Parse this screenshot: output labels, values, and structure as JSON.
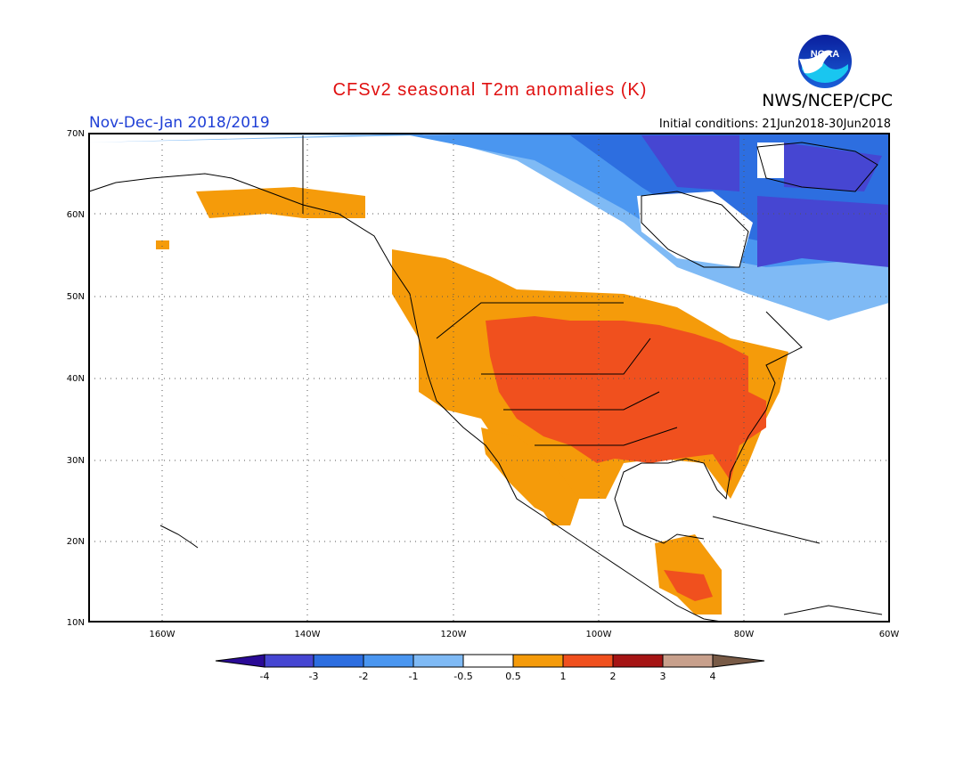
{
  "header": {
    "title": "CFSv2 seasonal T2m anomalies (K)",
    "agency": "NWS/NCEP/CPC",
    "logo_text": "NOAA",
    "period": "Nov-Dec-Jan 2018/2019",
    "initial_conditions": "Initial conditions: 21Jun2018-30Jun2018"
  },
  "map": {
    "lat_range": [
      10,
      70
    ],
    "lon_range": [
      -170,
      -60
    ],
    "lat_ticks": [
      {
        "value": 70,
        "label": "70N"
      },
      {
        "value": 60,
        "label": "60N"
      },
      {
        "value": 50,
        "label": "50N"
      },
      {
        "value": 40,
        "label": "40N"
      },
      {
        "value": 30,
        "label": "30N"
      },
      {
        "value": 20,
        "label": "20N"
      },
      {
        "value": 10,
        "label": "10N"
      }
    ],
    "lon_ticks": [
      {
        "value": -160,
        "label": "160W"
      },
      {
        "value": -140,
        "label": "140W"
      },
      {
        "value": -120,
        "label": "120W"
      },
      {
        "value": -100,
        "label": "100W"
      },
      {
        "value": -80,
        "label": "80W"
      },
      {
        "value": -60,
        "label": "60W"
      }
    ],
    "grid": true
  },
  "colorbar": {
    "labels": [
      "-4",
      "-3",
      "-2",
      "-1",
      "-0.5",
      "0.5",
      "1",
      "2",
      "3",
      "4"
    ],
    "colors": [
      "#2a0a96",
      "#4646d2",
      "#2d6ee0",
      "#4a96f0",
      "#7fbaf5",
      "#ffffff",
      "#f59b0a",
      "#f0501e",
      "#a51414",
      "#c8a08c",
      "#785a46"
    ]
  },
  "anomaly_regions": [
    {
      "level": "-3",
      "color": "#4646d2",
      "region": "Northern Quebec / Nunavut"
    },
    {
      "level": "-2",
      "color": "#2d6ee0",
      "region": "Northern Canada"
    },
    {
      "level": "-1",
      "color": "#4a96f0",
      "region": "Central Canada"
    },
    {
      "level": "-0.5",
      "color": "#7fbaf5",
      "region": "Southern Canada fringe"
    },
    {
      "level": "0.5",
      "color": "#f59b0a",
      "region": "Alaska, Western US, Mexico, Central America"
    },
    {
      "level": "1",
      "color": "#f0501e",
      "region": "Central and Eastern US"
    }
  ]
}
